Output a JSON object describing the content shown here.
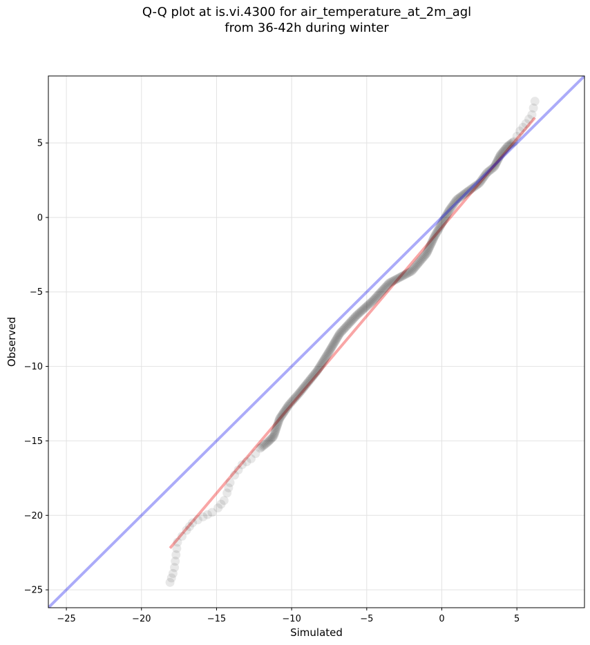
{
  "chart_data": {
    "type": "scatter",
    "title": "Q-Q plot at is.vi.4300 for air_temperature_at_2m_agl\nfrom 36-42h during winter",
    "xlabel": "Simulated",
    "ylabel": "Observed",
    "xlim": [
      -26.2,
      9.5
    ],
    "ylim": [
      -26.2,
      9.5
    ],
    "xticks": [
      -25,
      -20,
      -15,
      -10,
      -5,
      0,
      5
    ],
    "yticks": [
      -25,
      -20,
      -15,
      -10,
      -5,
      0,
      5
    ],
    "xtick_labels": [
      "−25",
      "−20",
      "−15",
      "−10",
      "−5",
      "0",
      "5"
    ],
    "ytick_labels": [
      "−25",
      "−20",
      "−15",
      "−10",
      "−5",
      "0",
      "5"
    ],
    "grid": true,
    "colors": {
      "points": "#000000",
      "identity_line": "#0000ee",
      "fit_line": "#ee0000"
    },
    "identity_line": {
      "from": [
        -26.2,
        -26.2
      ],
      "to": [
        9.5,
        9.5
      ]
    },
    "fit_line": {
      "from": [
        -18.1,
        -22.2
      ],
      "to": [
        6.2,
        6.7
      ]
    },
    "quantile_path": [
      [
        -18.1,
        -24.5
      ],
      [
        -17.9,
        -23.9
      ],
      [
        -17.8,
        -23.5
      ],
      [
        -17.6,
        -21.8
      ],
      [
        -17.3,
        -21.4
      ],
      [
        -17.0,
        -21.0
      ],
      [
        -16.6,
        -20.5
      ],
      [
        -15.9,
        -20.1
      ],
      [
        -15.3,
        -19.8
      ],
      [
        -14.9,
        -19.5
      ],
      [
        -14.5,
        -19.0
      ],
      [
        -14.3,
        -18.5
      ],
      [
        -14.1,
        -17.8
      ],
      [
        -13.8,
        -17.3
      ],
      [
        -13.3,
        -16.6
      ],
      [
        -12.7,
        -16.2
      ],
      [
        -12.1,
        -15.5
      ],
      [
        -11.6,
        -15.1
      ],
      [
        -11.2,
        -14.7
      ],
      [
        -10.8,
        -13.5
      ],
      [
        -10.2,
        -12.6
      ],
      [
        -9.5,
        -11.8
      ],
      [
        -8.3,
        -10.3
      ],
      [
        -7.5,
        -9.0
      ],
      [
        -6.8,
        -7.8
      ],
      [
        -5.7,
        -6.6
      ],
      [
        -4.6,
        -5.6
      ],
      [
        -3.5,
        -4.4
      ],
      [
        -2.0,
        -3.6
      ],
      [
        -1.0,
        -2.4
      ],
      [
        -0.5,
        -1.3
      ],
      [
        0.0,
        -0.4
      ],
      [
        0.5,
        0.5
      ],
      [
        1.0,
        1.2
      ],
      [
        1.8,
        1.8
      ],
      [
        2.5,
        2.3
      ],
      [
        3.0,
        3.0
      ],
      [
        3.5,
        3.4
      ],
      [
        3.9,
        4.2
      ],
      [
        4.4,
        4.8
      ],
      [
        4.8,
        5.1
      ],
      [
        5.2,
        5.8
      ],
      [
        5.6,
        6.3
      ],
      [
        6.0,
        6.9
      ],
      [
        6.2,
        7.8
      ]
    ]
  }
}
